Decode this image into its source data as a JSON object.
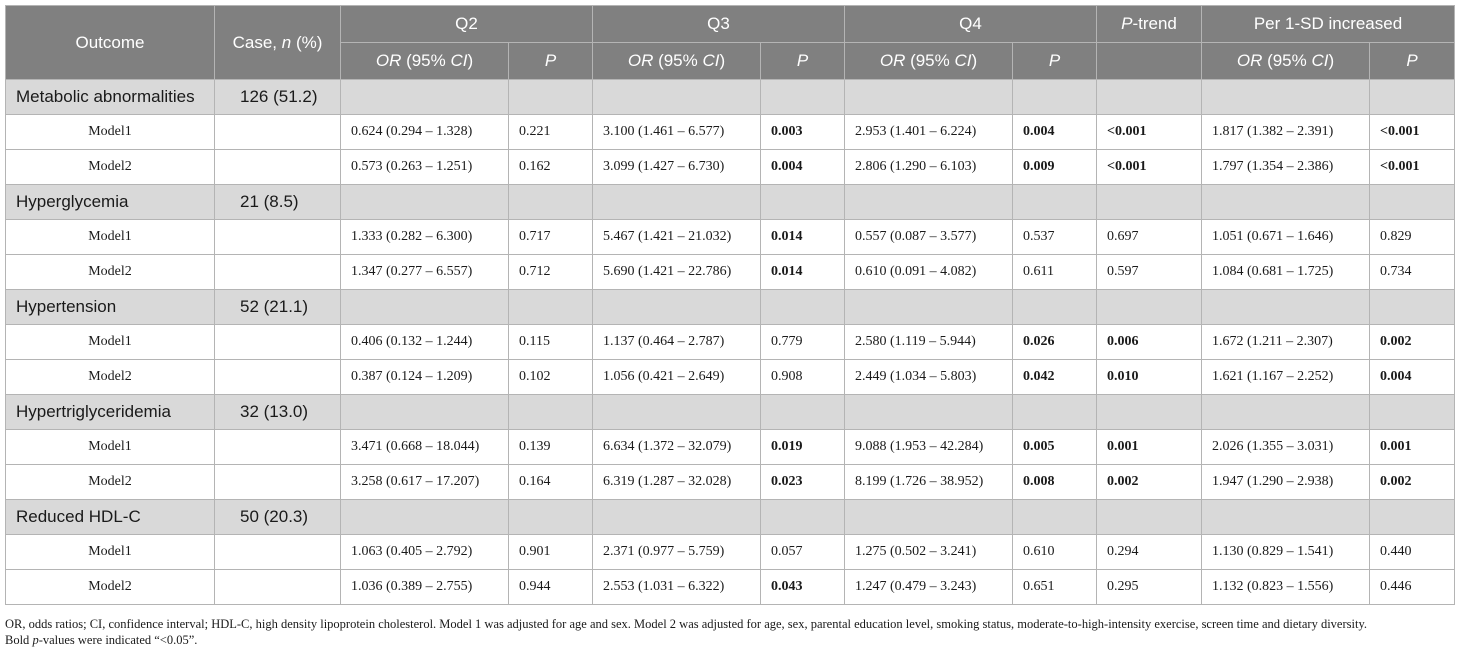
{
  "header": {
    "outcome": "Outcome",
    "case_prefix": "Case, ",
    "case_n": "n",
    "case_suffix": " (%)",
    "q2": "Q2",
    "q3": "Q3",
    "q4": "Q4",
    "ptrend_p": "P",
    "ptrend_rest": "-trend",
    "per_sd": "Per 1-SD increased",
    "or_ci_or": "OR",
    "or_ci_mid": " (95% ",
    "or_ci_ci": "CI",
    "or_ci_end": ")",
    "p": "P"
  },
  "groups": [
    {
      "outcome": "Metabolic abnormalities",
      "case": "126 (51.2)",
      "models": [
        {
          "name": "Model1",
          "q2_or": "0.624 (0.294 – 1.328)",
          "q2_p": "0.221",
          "q3_or": "3.100 (1.461 – 6.577)",
          "q3_p": "0.003",
          "q4_or": "2.953 (1.401 – 6.224)",
          "q4_p": "0.004",
          "ptrend": "<0.001",
          "sd_or": "1.817 (1.382 – 2.391)",
          "sd_p": "<0.001"
        },
        {
          "name": "Model2",
          "q2_or": "0.573 (0.263 – 1.251)",
          "q2_p": "0.162",
          "q3_or": "3.099 (1.427 – 6.730)",
          "q3_p": "0.004",
          "q4_or": "2.806 (1.290 – 6.103)",
          "q4_p": "0.009",
          "ptrend": "<0.001",
          "sd_or": "1.797 (1.354 – 2.386)",
          "sd_p": "<0.001"
        }
      ]
    },
    {
      "outcome": "Hyperglycemia",
      "case": "21 (8.5)",
      "models": [
        {
          "name": "Model1",
          "q2_or": "1.333 (0.282 – 6.300)",
          "q2_p": "0.717",
          "q3_or": "5.467 (1.421 – 21.032)",
          "q3_p": "0.014",
          "q4_or": "0.557 (0.087 – 3.577)",
          "q4_p": "0.537",
          "ptrend": "0.697",
          "sd_or": "1.051 (0.671 – 1.646)",
          "sd_p": "0.829"
        },
        {
          "name": "Model2",
          "q2_or": "1.347 (0.277 – 6.557)",
          "q2_p": "0.712",
          "q3_or": "5.690 (1.421 – 22.786)",
          "q3_p": "0.014",
          "q4_or": "0.610 (0.091 – 4.082)",
          "q4_p": "0.611",
          "ptrend": "0.597",
          "sd_or": "1.084 (0.681 – 1.725)",
          "sd_p": "0.734"
        }
      ]
    },
    {
      "outcome": "Hypertension",
      "case": "52 (21.1)",
      "models": [
        {
          "name": "Model1",
          "q2_or": "0.406 (0.132 – 1.244)",
          "q2_p": "0.115",
          "q3_or": "1.137 (0.464 – 2.787)",
          "q3_p": "0.779",
          "q4_or": "2.580 (1.119 – 5.944)",
          "q4_p": "0.026",
          "ptrend": "0.006",
          "sd_or": "1.672 (1.211 – 2.307)",
          "sd_p": "0.002"
        },
        {
          "name": "Model2",
          "q2_or": "0.387 (0.124 – 1.209)",
          "q2_p": "0.102",
          "q3_or": "1.056 (0.421 – 2.649)",
          "q3_p": "0.908",
          "q4_or": "2.449 (1.034 – 5.803)",
          "q4_p": "0.042",
          "ptrend": "0.010",
          "sd_or": "1.621 (1.167 – 2.252)",
          "sd_p": "0.004"
        }
      ]
    },
    {
      "outcome": "Hypertriglyceridemia",
      "case": "32 (13.0)",
      "models": [
        {
          "name": "Model1",
          "q2_or": "3.471 (0.668 – 18.044)",
          "q2_p": "0.139",
          "q3_or": "6.634 (1.372 – 32.079)",
          "q3_p": "0.019",
          "q4_or": "9.088 (1.953 – 42.284)",
          "q4_p": "0.005",
          "ptrend": "0.001",
          "sd_or": "2.026 (1.355 – 3.031)",
          "sd_p": "0.001"
        },
        {
          "name": "Model2",
          "q2_or": "3.258 (0.617 – 17.207)",
          "q2_p": "0.164",
          "q3_or": "6.319 (1.287 – 32.028)",
          "q3_p": "0.023",
          "q4_or": "8.199 (1.726 – 38.952)",
          "q4_p": "0.008",
          "ptrend": "0.002",
          "sd_or": "1.947 (1.290 – 2.938)",
          "sd_p": "0.002"
        }
      ]
    },
    {
      "outcome": "Reduced HDL-C",
      "case": "50 (20.3)",
      "models": [
        {
          "name": "Model1",
          "q2_or": "1.063 (0.405 – 2.792)",
          "q2_p": "0.901",
          "q3_or": "2.371 (0.977 – 5.759)",
          "q3_p": "0.057",
          "q4_or": "1.275 (0.502 – 3.241)",
          "q4_p": "0.610",
          "ptrend": "0.294",
          "sd_or": "1.130 (0.829 – 1.541)",
          "sd_p": "0.440"
        },
        {
          "name": "Model2",
          "q2_or": "1.036 (0.389 – 2.755)",
          "q2_p": "0.944",
          "q3_or": "2.553 (1.031 – 6.322)",
          "q3_p": "0.043",
          "q4_or": "1.247 (0.479 – 3.243)",
          "q4_p": "0.651",
          "ptrend": "0.295",
          "sd_or": "1.132 (0.823 – 1.556)",
          "sd_p": "0.446"
        }
      ]
    }
  ],
  "footnote": {
    "line1": "OR, odds ratios; CI, confidence interval; HDL-C, high density lipoprotein cholesterol. Model 1 was adjusted for age and sex. Model 2 was adjusted for age, sex, parental education level, smoking status, moderate-to-high-intensity exercise, screen time and dietary diversity.",
    "line2_prefix": "Bold ",
    "line2_italic": "p",
    "line2_suffix": "-values were indicated “<0.05”."
  },
  "colors": {
    "header_bg": "#808080",
    "group_bg": "#d9d9d9",
    "border": "#b4b4b4"
  }
}
